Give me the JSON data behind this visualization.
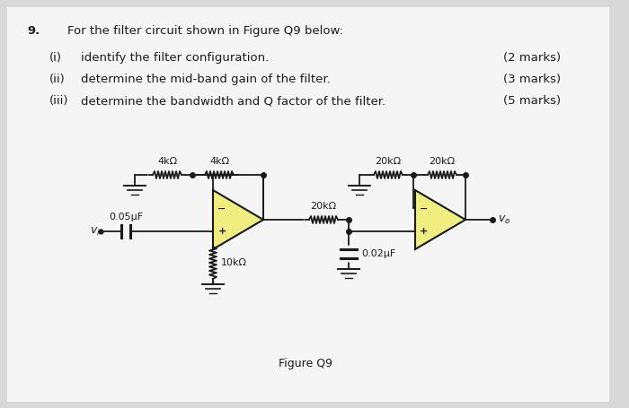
{
  "bg_color": "#d8d8d8",
  "paper_color": "#f5f5f5",
  "text_color": "#1a1a1a",
  "opamp_fill": "#f0ee80",
  "wire_color": "#1a1a1a",
  "font_size_text": 9.5,
  "font_size_circuit": 8.0,
  "question_number": "9.",
  "main_question": "For the filter circuit shown in Figure Q9 below:",
  "sub_items": [
    {
      "label": "(i)",
      "text": "identify the filter configuration.",
      "marks": "(2 marks)"
    },
    {
      "label": "(ii)",
      "text": "determine the mid-band gain of the filter.",
      "marks": "(3 marks)"
    },
    {
      "label": "(iii)",
      "text": "determine the bandwidth and Q factor of the filter.",
      "marks": "(5 marks)"
    }
  ],
  "figure_caption": "Figure Q9"
}
